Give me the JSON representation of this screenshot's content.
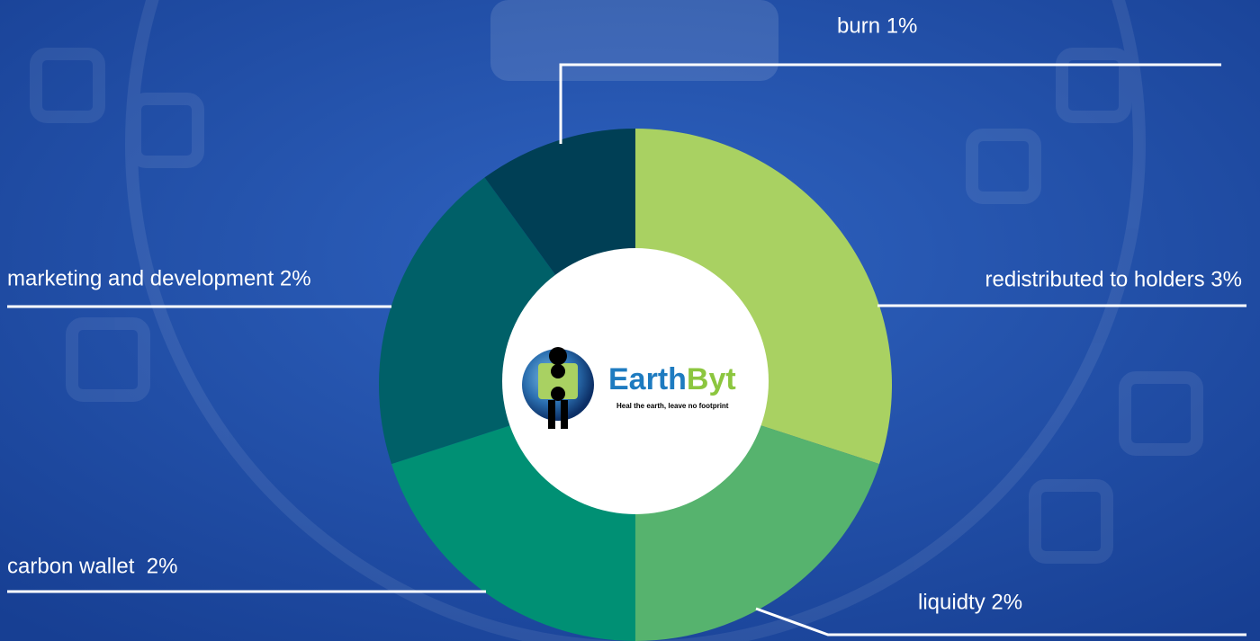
{
  "chart_data": {
    "type": "donut",
    "value_labels": [
      "redistributed to holders 3%",
      "liquidty 2%",
      "carbon wallet  2%",
      "marketing and development 2%",
      "burn 1%"
    ],
    "values": [
      3,
      2,
      2,
      2,
      1
    ],
    "colors": [
      "#a9d162",
      "#56b36e",
      "#009074",
      "#006068",
      "#003f55"
    ]
  },
  "logo": {
    "name_part1": "Earth",
    "name_part2": "Byt",
    "tagline": "Heal the earth, leave no footprint"
  }
}
